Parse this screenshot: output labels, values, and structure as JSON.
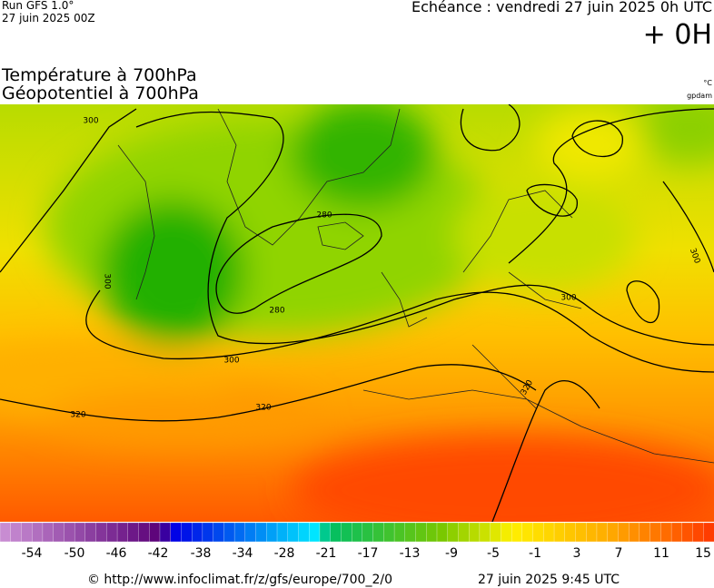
{
  "header": {
    "run": "Run GFS 1.0°",
    "date": "27 juin 2025 00Z",
    "echeance": "Echéance : vendredi 27 juin 2025 0h UTC",
    "offset": "+ 0H"
  },
  "titles": [
    "Température à 700hPa",
    "Géopotentiel à 700hPa"
  ],
  "units": [
    "°C",
    "gpdam"
  ],
  "contour_labels": [
    "300",
    "280",
    "280",
    "300",
    "300",
    "300",
    "300",
    "320",
    "320",
    "320"
  ],
  "legend": {
    "labels": [
      "-54",
      "-50",
      "-46",
      "-42",
      "-38",
      "-34",
      "-28",
      "-21",
      "-17",
      "-13",
      "-9",
      "-5",
      "-1",
      "3",
      "7",
      "11",
      "15"
    ]
  },
  "footer": {
    "url": "© http://www.infoclimat.fr/z/gfs/europe/700_2/0",
    "timestamp": "27 juin 2025  9:45 UTC"
  }
}
